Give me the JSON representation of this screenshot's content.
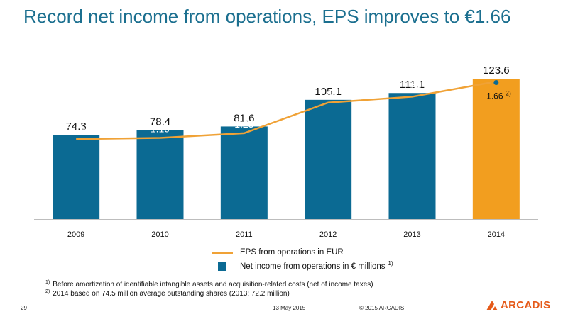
{
  "slide": {
    "title": "Record net income from operations, EPS improves to €1.66",
    "page_number": "29",
    "date": "13 May 2015",
    "copyright": "© 2015 ARCADIS",
    "logo_text": "ARCADIS"
  },
  "legend": {
    "line_label": "EPS from operations in EUR",
    "bar_label": "Net income from operations in € millions",
    "bar_note": "1)"
  },
  "footnotes": [
    {
      "mark": "1)",
      "text": "Before amortization of identifiable intangible assets and acquisition-related costs (net of income taxes)"
    },
    {
      "mark": "2)",
      "text": "2014 based on 74.5 million average outstanding shares (2013: 72.2 million)"
    }
  ],
  "colors": {
    "bar": "#0b6a93",
    "bar_highlight": "#f29e1f",
    "line": "#f0a236",
    "title": "#1b6f8f",
    "logo": "#e55a19"
  },
  "chart_data": {
    "type": "bar",
    "categories": [
      "2009",
      "2010",
      "2011",
      "2012",
      "2013",
      "2014"
    ],
    "series": [
      {
        "name": "Net income from operations in € millions",
        "type": "bar",
        "values": [
          74.3,
          78.4,
          81.6,
          105.1,
          111.1,
          123.6
        ],
        "labels": [
          "74.3",
          "78.4",
          "81.6",
          "105.1",
          "111.1",
          "123.6"
        ]
      },
      {
        "name": "EPS from operations in EUR",
        "type": "line",
        "values": [
          1.18,
          1.19,
          1.23,
          1.49,
          1.54,
          1.66
        ],
        "labels": [
          "1.18",
          "1.19",
          "1.23",
          "1.49",
          "1.54",
          "1.66"
        ]
      }
    ],
    "highlight_category": "2014",
    "eps_note": "2)",
    "bar_ylim": [
      0,
      140
    ],
    "eps_ylim": [
      0.5,
      1.85
    ],
    "grid": false,
    "legend_position": "bottom-center"
  }
}
